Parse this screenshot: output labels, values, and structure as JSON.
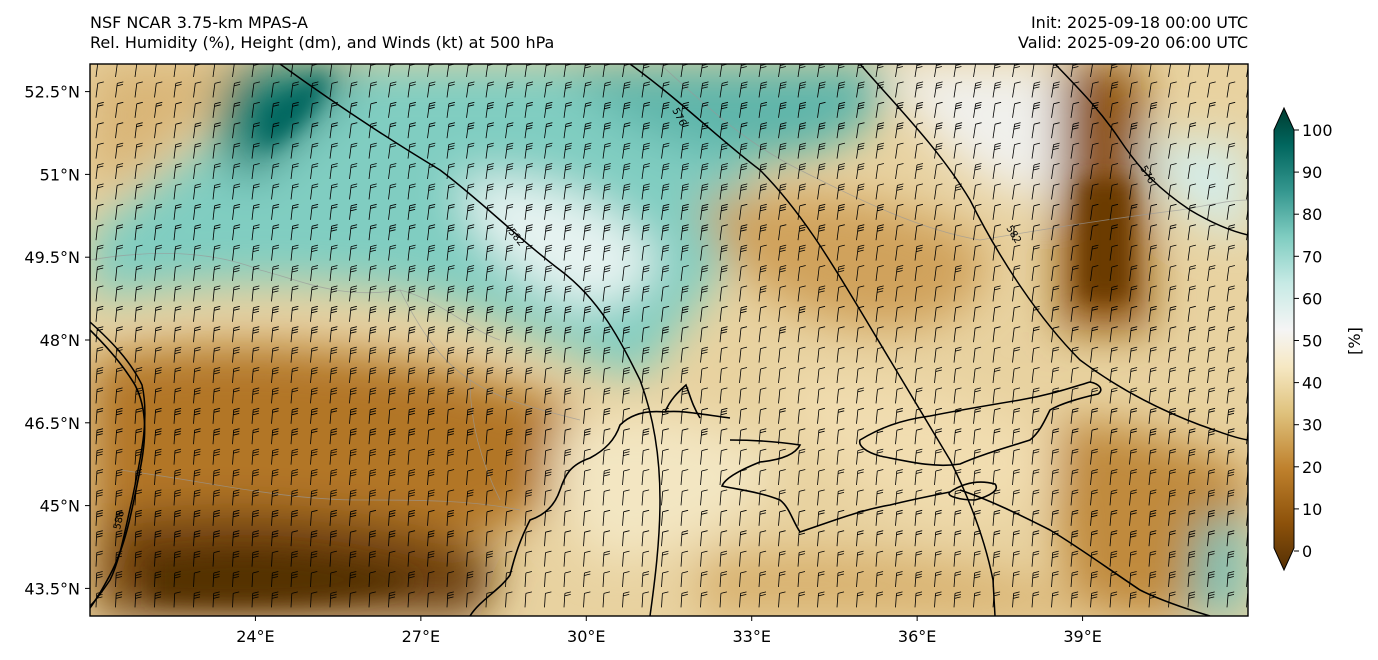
{
  "header": {
    "model": "NSF NCAR 3.75-km MPAS-A",
    "fields": "Rel. Humidity (%), Height (dm), and Winds (kt) at 500 hPa",
    "init": "Init: 2025-09-18 00:00 UTC",
    "valid": "Valid: 2025-09-20 06:00 UTC"
  },
  "axes": {
    "lat_labels": [
      "52.5°N",
      "51°N",
      "49.5°N",
      "48°N",
      "46.5°N",
      "45°N",
      "43.5°N"
    ],
    "lat_values": [
      52.5,
      51,
      49.5,
      48,
      46.5,
      45,
      43.5
    ],
    "lon_labels": [
      "24°E",
      "27°E",
      "30°E",
      "33°E",
      "36°E",
      "39°E"
    ],
    "lon_values": [
      24,
      27,
      30,
      33,
      36,
      39
    ],
    "lon_range": [
      21,
      42
    ],
    "lat_range": [
      43.0,
      53.0
    ]
  },
  "colorbar": {
    "unit_label": "[%]",
    "ticks": [
      "0",
      "10",
      "20",
      "30",
      "40",
      "50",
      "60",
      "70",
      "80",
      "90",
      "100"
    ],
    "min": 0,
    "max": 100,
    "extend": "both",
    "colormap": "BrBG",
    "colors": [
      "#543005",
      "#8c510a",
      "#bf812d",
      "#dfc27d",
      "#f6e8c3",
      "#f5f5f5",
      "#c7eae5",
      "#80cdc1",
      "#35978f",
      "#01665e",
      "#003c30"
    ]
  },
  "contours": {
    "labels": [
      "576",
      "582",
      "582",
      "576",
      "588"
    ],
    "color": "#000000"
  },
  "map": {
    "coastline_color": "#000000",
    "border_color": "#888888",
    "barb_color": "#000000"
  }
}
